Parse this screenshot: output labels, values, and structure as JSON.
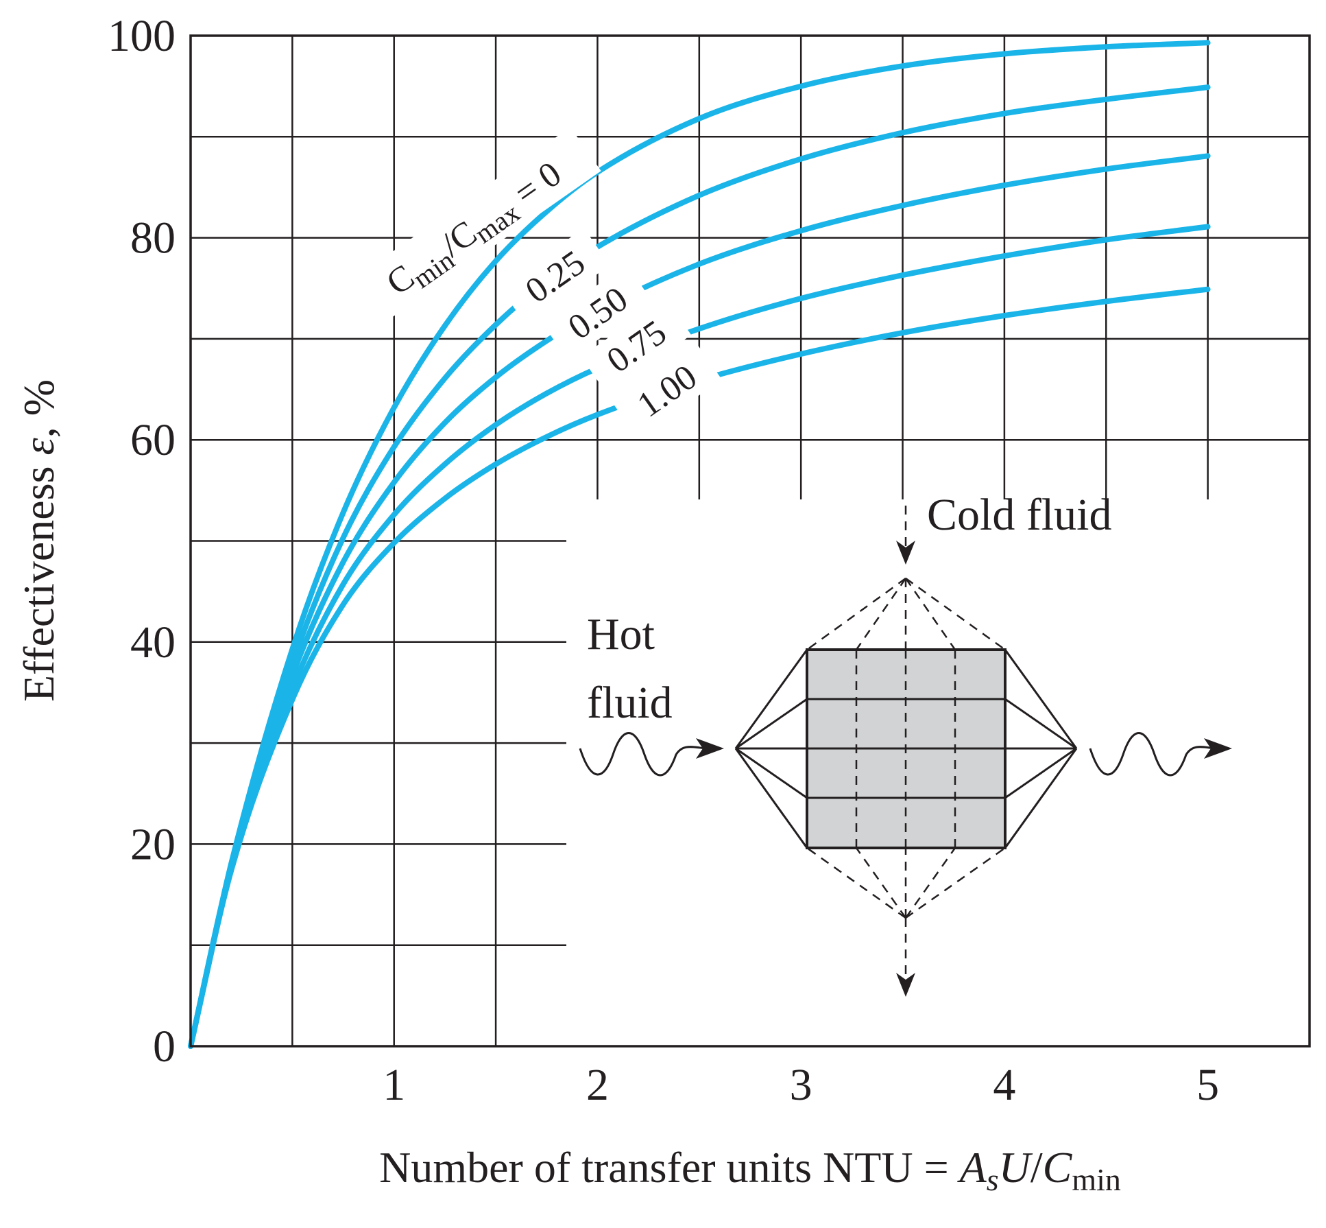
{
  "chart_data": {
    "type": "line",
    "title": "",
    "xlabel": {
      "main": "Number of transfer units NTU = ",
      "a": "A",
      "a_sub": "s",
      "u": "U",
      "slash": "/",
      "c": "C",
      "c_sub": "min"
    },
    "ylabel": {
      "main": "Effectiveness ",
      "symbol": "ε",
      "unit": ", %"
    },
    "xlim": [
      0,
      5.5
    ],
    "ylim": [
      0,
      100
    ],
    "x_ticks": [
      {
        "value": 1,
        "label": "1"
      },
      {
        "value": 2,
        "label": "2"
      },
      {
        "value": 3,
        "label": "3"
      },
      {
        "value": 4,
        "label": "4"
      },
      {
        "value": 5,
        "label": "5"
      }
    ],
    "y_ticks": [
      {
        "value": 0,
        "label": "0"
      },
      {
        "value": 20,
        "label": "20"
      },
      {
        "value": 40,
        "label": "40"
      },
      {
        "value": 60,
        "label": "60"
      },
      {
        "value": 80,
        "label": "80"
      },
      {
        "value": 100,
        "label": "100"
      }
    ],
    "grid": true,
    "grid_step_x": 0.5,
    "grid_step_y": 10,
    "line_color": "#1ab4e8",
    "series": [
      {
        "label_c": "C",
        "label_min": "min",
        "label_slash": "/",
        "label_c2": "C",
        "label_max": "max",
        "label_eq": " = 0",
        "x": [
          0,
          0.2,
          0.5,
          0.75,
          1.0,
          1.25,
          1.5,
          1.75,
          2.0,
          2.5,
          3.0,
          3.5,
          4.0,
          4.5,
          5.0
        ],
        "y": [
          0,
          18.1,
          39.3,
          52.8,
          63.2,
          71.3,
          77.7,
          82.6,
          86.5,
          91.8,
          95.0,
          97.0,
          98.2,
          98.9,
          99.3
        ]
      },
      {
        "name": "0.25",
        "x": [
          0,
          0.2,
          0.5,
          0.75,
          1.0,
          1.25,
          1.5,
          1.75,
          2.0,
          2.5,
          3.0,
          3.5,
          4.0,
          4.5,
          5.0
        ],
        "y": [
          0,
          17.9,
          37.9,
          50.3,
          59.3,
          66.1,
          71.4,
          75.7,
          79.1,
          84.2,
          87.8,
          90.4,
          92.3,
          93.7,
          94.9
        ]
      },
      {
        "name": "0.50",
        "x": [
          0,
          0.2,
          0.5,
          0.75,
          1.0,
          1.25,
          1.5,
          1.75,
          2.0,
          2.5,
          3.0,
          3.5,
          4.0,
          4.5,
          5.0
        ],
        "y": [
          0,
          17.8,
          36.7,
          47.9,
          55.8,
          61.7,
          66.2,
          69.8,
          72.8,
          77.4,
          80.7,
          83.2,
          85.2,
          86.8,
          88.1
        ]
      },
      {
        "name": "0.75",
        "x": [
          0,
          0.2,
          0.5,
          0.75,
          1.0,
          1.25,
          1.5,
          1.75,
          2.0,
          2.5,
          3.0,
          3.5,
          4.0,
          4.5,
          5.0
        ],
        "y": [
          0,
          17.6,
          35.4,
          45.7,
          52.6,
          57.6,
          61.5,
          64.6,
          67.1,
          71.0,
          74.0,
          76.3,
          78.2,
          79.8,
          81.1
        ]
      },
      {
        "name": "1.00",
        "x": [
          0,
          0.2,
          0.5,
          0.75,
          1.0,
          1.25,
          1.5,
          1.75,
          2.0,
          2.5,
          3.0,
          3.5,
          4.0,
          4.5,
          5.0
        ],
        "y": [
          0,
          17.4,
          34.3,
          43.7,
          49.8,
          54.2,
          57.6,
          60.3,
          62.5,
          65.9,
          68.5,
          70.6,
          72.3,
          73.7,
          74.9
        ]
      }
    ],
    "inset": {
      "cold_label": "Cold fluid",
      "hot_label_line1": "Hot",
      "hot_label_line2": "fluid"
    }
  }
}
